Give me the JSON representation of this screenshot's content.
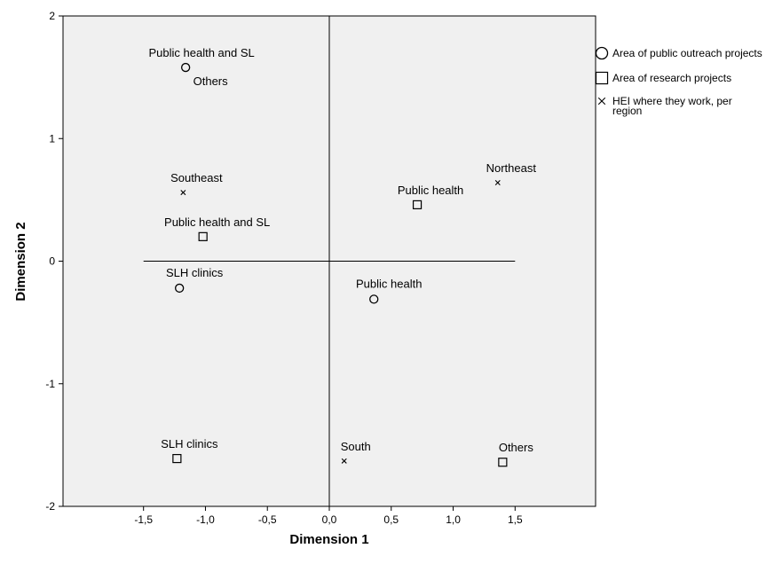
{
  "chart_data": {
    "type": "scatter",
    "xlabel": "Dimension 1",
    "ylabel": "Dimension 2",
    "xlim": [
      -2.15,
      2.15
    ],
    "ylim": [
      -2,
      2
    ],
    "xticks": [
      -1.5,
      -1.0,
      -0.5,
      0.0,
      0.5,
      1.0,
      1.5
    ],
    "xtick_labels": [
      "-1,5",
      "-1,0",
      "-0,5",
      "0,0",
      "0,5",
      "1,0",
      "1,5"
    ],
    "yticks": [
      -2,
      -1,
      0,
      1,
      2
    ],
    "ytick_labels": [
      "-2",
      "-1",
      "0",
      "1",
      "2"
    ],
    "reference_lines": {
      "horizontal_y": 0,
      "horizontal_x_range": [
        -1.5,
        1.5
      ],
      "vertical_x": 0
    },
    "grid": false,
    "legend_position": "right",
    "series": [
      {
        "name": "Area of public outreach projects",
        "marker": "circle",
        "points": [
          {
            "label": "Public health and SL",
            "x": -1.16,
            "y": 1.58
          },
          {
            "label": "Others",
            "x": -1.16,
            "y": 1.58
          },
          {
            "label": "SLH clinics",
            "x": -1.21,
            "y": -0.22
          },
          {
            "label": "Public health",
            "x": 0.36,
            "y": -0.31
          }
        ]
      },
      {
        "name": "Area of research projects",
        "marker": "square",
        "points": [
          {
            "label": "Public health",
            "x": 0.71,
            "y": 0.46
          },
          {
            "label": "Public health and SL",
            "x": -1.02,
            "y": 0.2
          },
          {
            "label": "SLH clinics",
            "x": -1.23,
            "y": -1.61
          },
          {
            "label": "Others",
            "x": 1.4,
            "y": -1.64
          }
        ]
      },
      {
        "name": "HEI where they work, per region",
        "marker": "x",
        "points": [
          {
            "label": "Southeast",
            "x": -1.18,
            "y": 0.56
          },
          {
            "label": "Northeast",
            "x": 1.36,
            "y": 0.64
          },
          {
            "label": "South",
            "x": 0.12,
            "y": -1.63
          }
        ]
      }
    ]
  },
  "legend": {
    "items": [
      {
        "lines": [
          "Area of public outreach projects"
        ]
      },
      {
        "lines": [
          "Area of research projects"
        ]
      },
      {
        "lines": [
          "HEI where they work, per",
          "region"
        ]
      }
    ]
  }
}
